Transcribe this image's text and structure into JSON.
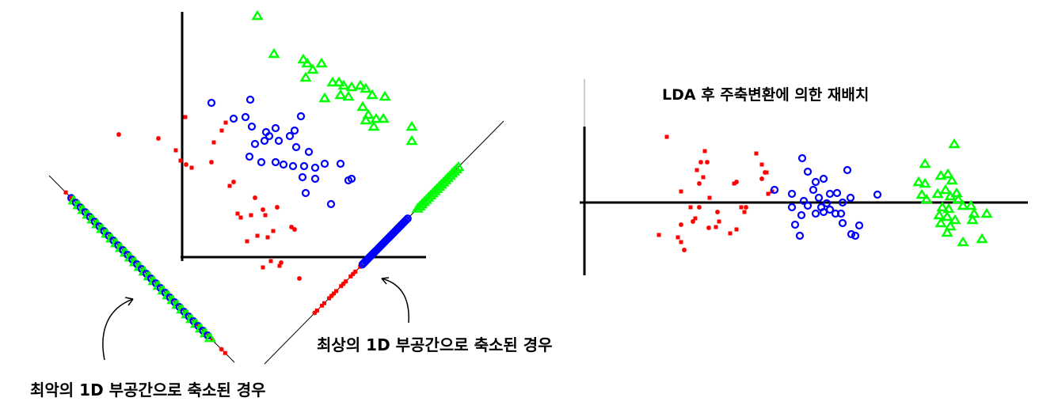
{
  "title": "LDA 후 주축변환에 의한 재배치",
  "captions": {
    "best": "최상의 1D 부공간으로 축소된 경우",
    "worst": "최악의 1D 부공간으로 축소된 경우"
  },
  "colors": {
    "class1": "#ff0000",
    "class2": "#0000ff",
    "class3": "#00ff00",
    "axis": "#000000"
  },
  "markers": {
    "class1": "square-and-asterisk",
    "class2": "circle",
    "class3": "triangle"
  }
}
